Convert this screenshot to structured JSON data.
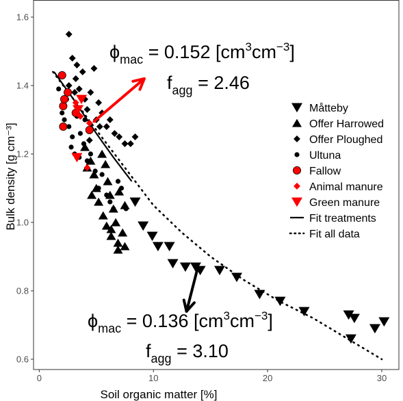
{
  "chart_data": {
    "type": "scatter",
    "xlabel": "Soil organic matter [%]",
    "ylabel": "Bulk density [g cm⁻³]",
    "xlim": [
      -0.5,
      31.5
    ],
    "ylim": [
      0.57,
      1.65
    ],
    "x_ticks": [
      0,
      10,
      20,
      30
    ],
    "y_ticks": [
      0.6,
      0.8,
      1.0,
      1.2,
      1.4,
      1.6
    ],
    "x_tick_labels": [
      "0",
      "10",
      "20",
      "30"
    ],
    "y_tick_labels": [
      "0.6",
      "0.8",
      "1.0",
      "1.2",
      "1.4",
      "1.6"
    ],
    "grid": false,
    "legend_position": "right",
    "colors": {
      "black": "#000000",
      "red": "#ff0000"
    },
    "series": [
      {
        "name": "Måtteby",
        "marker": "triangle-down",
        "color": "#000000",
        "points": [
          [
            8.4,
            1.06
          ],
          [
            9.1,
            0.99
          ],
          [
            9.9,
            0.96
          ],
          [
            10.4,
            0.93
          ],
          [
            11.4,
            0.93
          ],
          [
            11.7,
            0.88
          ],
          [
            12.8,
            0.87
          ],
          [
            13.7,
            0.87
          ],
          [
            14.1,
            0.86
          ],
          [
            15.8,
            0.86
          ],
          [
            17.3,
            0.84
          ],
          [
            19.3,
            0.79
          ],
          [
            21.1,
            0.77
          ],
          [
            23.2,
            0.74
          ],
          [
            27.1,
            0.73
          ],
          [
            27.3,
            0.66
          ],
          [
            27.6,
            0.72
          ],
          [
            29.4,
            0.69
          ],
          [
            30.2,
            0.71
          ]
        ]
      },
      {
        "name": "Offer Harrowed",
        "marker": "triangle-up",
        "color": "#000000",
        "points": [
          [
            4.0,
            1.22
          ],
          [
            4.5,
            1.18
          ],
          [
            4.8,
            1.14
          ],
          [
            5.0,
            1.1
          ],
          [
            5.2,
            1.06
          ],
          [
            5.5,
            1.2
          ],
          [
            5.6,
            1.02
          ],
          [
            5.8,
            1.17
          ],
          [
            6.0,
            1.12
          ],
          [
            6.2,
            1.08
          ],
          [
            6.3,
            0.98
          ],
          [
            6.5,
            1.04
          ],
          [
            6.7,
            1.0
          ],
          [
            6.9,
            0.94
          ],
          [
            5.9,
            0.99
          ],
          [
            7.3,
            0.97
          ],
          [
            7.5,
            1.05
          ],
          [
            7.0,
            1.09
          ],
          [
            4.2,
            1.16
          ],
          [
            4.6,
            1.08
          ],
          [
            6.3,
            0.96
          ],
          [
            7.5,
            0.93
          ],
          [
            6.9,
            0.92
          ]
        ]
      },
      {
        "name": "Offer Ploughed",
        "marker": "diamond",
        "color": "#000000",
        "points": [
          [
            2.6,
            1.55
          ],
          [
            2.9,
            1.48
          ],
          [
            3.2,
            1.42
          ],
          [
            3.3,
            1.46
          ],
          [
            3.5,
            1.39
          ],
          [
            3.8,
            1.44
          ],
          [
            4.0,
            1.36
          ],
          [
            4.2,
            1.33
          ],
          [
            4.5,
            1.38
          ],
          [
            4.8,
            1.45
          ],
          [
            5.0,
            1.3
          ],
          [
            5.2,
            1.35
          ],
          [
            5.5,
            1.32
          ],
          [
            5.9,
            1.28
          ],
          [
            6.2,
            1.3
          ],
          [
            6.6,
            1.26
          ],
          [
            7.0,
            1.25
          ],
          [
            7.5,
            1.23
          ],
          [
            8.0,
            1.23
          ],
          [
            8.4,
            1.25
          ],
          [
            3.1,
            1.38
          ],
          [
            2.6,
            1.4
          ],
          [
            5.3,
            1.28
          ],
          [
            4.4,
            1.24
          ]
        ]
      },
      {
        "name": "Ultuna",
        "marker": "dot",
        "color": "#000000",
        "points": [
          [
            1.7,
            1.39
          ],
          [
            2.0,
            1.32
          ],
          [
            2.2,
            1.3
          ],
          [
            2.4,
            1.36
          ],
          [
            2.6,
            1.28
          ],
          [
            2.9,
            1.25
          ],
          [
            3.1,
            1.2
          ],
          [
            3.3,
            1.31
          ],
          [
            3.6,
            1.26
          ],
          [
            3.9,
            1.23
          ],
          [
            4.2,
            1.18
          ],
          [
            4.5,
            1.2
          ],
          [
            4.9,
            1.15
          ],
          [
            5.2,
            1.1
          ],
          [
            5.5,
            1.14
          ],
          [
            5.9,
            1.08
          ],
          [
            6.2,
            1.06
          ],
          [
            6.5,
            1.04
          ],
          [
            6.9,
            1.12
          ],
          [
            7.2,
            1.1
          ],
          [
            7.6,
            1.04
          ],
          [
            2.8,
            1.22
          ],
          [
            3.5,
            1.19
          ],
          [
            4.0,
            1.3
          ]
        ]
      },
      {
        "name": "Fallow",
        "marker": "circle",
        "color": "#ff0000",
        "points": [
          [
            2.0,
            1.43
          ],
          [
            2.1,
            1.34
          ],
          [
            2.2,
            1.36
          ],
          [
            2.1,
            1.28
          ],
          [
            2.5,
            1.38
          ],
          [
            3.2,
            1.32
          ],
          [
            4.4,
            1.27
          ]
        ]
      },
      {
        "name": "Animal manure",
        "marker": "diamond",
        "color": "#ff0000",
        "points": [
          [
            3.2,
            1.35
          ],
          [
            4.4,
            1.29
          ],
          [
            4.2,
            1.16
          ],
          [
            3.6,
            1.31
          ]
        ]
      },
      {
        "name": "Green manure",
        "marker": "triangle-down",
        "color": "#ff0000",
        "points": [
          [
            3.3,
            1.19
          ],
          [
            3.7,
            1.36
          ],
          [
            3.4,
            1.33
          ]
        ]
      }
    ],
    "fit_lines": [
      {
        "name": "Fit treatments",
        "style": "solid",
        "points": [
          [
            1.3,
            1.44
          ],
          [
            3.0,
            1.36
          ],
          [
            5.0,
            1.26
          ],
          [
            6.5,
            1.19
          ],
          [
            8.1,
            1.12
          ]
        ]
      },
      {
        "name": "Fit all data",
        "style": "dotted",
        "points": [
          [
            1.2,
            1.44
          ],
          [
            3.0,
            1.36
          ],
          [
            5.0,
            1.27
          ],
          [
            7.5,
            1.16
          ],
          [
            10.0,
            1.05
          ],
          [
            12.5,
            0.97
          ],
          [
            15.0,
            0.9
          ],
          [
            18.0,
            0.83
          ],
          [
            21.0,
            0.77
          ],
          [
            24.0,
            0.72
          ],
          [
            27.0,
            0.66
          ],
          [
            30.0,
            0.6
          ]
        ]
      }
    ],
    "annotations": {
      "top": {
        "phi_prefix": "ϕ",
        "phi_sub": "mac",
        "phi_value": " = 0.152 [cm",
        "unit_sup1": "3",
        "unit_mid": "cm",
        "unit_sup2": "−3",
        "unit_end": "]",
        "f_prefix": "f",
        "f_sub": "agg",
        "f_value": " = 2.46"
      },
      "bottom": {
        "phi_prefix": "ϕ",
        "phi_sub": "mac",
        "phi_value": " = 0.136 [cm",
        "unit_sup1": "3",
        "unit_mid": "cm",
        "unit_sup2": "−3",
        "unit_end": "]",
        "f_prefix": "f",
        "f_sub": "agg",
        "f_value": " = 3.10"
      }
    },
    "arrows": [
      {
        "color": "#ff0000",
        "from": [
          4.8,
          1.295
        ],
        "to": [
          9.2,
          1.42
        ]
      },
      {
        "color": "#000000",
        "from": [
          13.9,
          0.87
        ],
        "to": [
          12.9,
          0.74
        ]
      }
    ]
  }
}
